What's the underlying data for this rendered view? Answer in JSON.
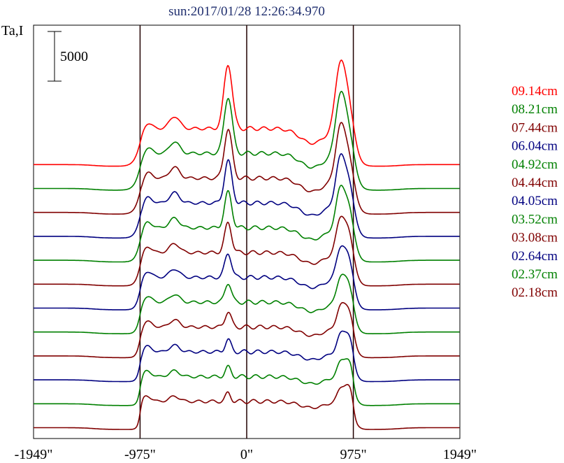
{
  "chart_data": {
    "type": "line",
    "title": "sun:2017/01/28 12:26:34.970",
    "ylabel": "Ta,I",
    "scale_bar_label": "5000",
    "scale_bar_value": 5000,
    "xlim": [
      -1949,
      1949
    ],
    "x_ticks": [
      {
        "value": -1949,
        "label": "-1949\""
      },
      {
        "value": -975,
        "label": "-975\""
      },
      {
        "value": 0,
        "label": "0\""
      },
      {
        "value": 975,
        "label": "975\""
      },
      {
        "value": 1949,
        "label": "1949\""
      }
    ],
    "vertical_lines": [
      -975,
      0,
      975
    ],
    "grid": false,
    "legend_position": "right",
    "series": [
      {
        "name": "09.14cm",
        "color": "#ff0000"
      },
      {
        "name": "08.21cm",
        "color": "#008000"
      },
      {
        "name": "07.44cm",
        "color": "#800000"
      },
      {
        "name": "06.04cm",
        "color": "#000080"
      },
      {
        "name": "04.92cm",
        "color": "#008000"
      },
      {
        "name": "04.44cm",
        "color": "#800000"
      },
      {
        "name": "04.05cm",
        "color": "#000080"
      },
      {
        "name": "03.52cm",
        "color": "#008000"
      },
      {
        "name": "03.08cm",
        "color": "#800000"
      },
      {
        "name": "02.64cm",
        "color": "#000080"
      },
      {
        "name": "02.37cm",
        "color": "#008000"
      },
      {
        "name": "02.18cm",
        "color": "#800000"
      }
    ]
  }
}
